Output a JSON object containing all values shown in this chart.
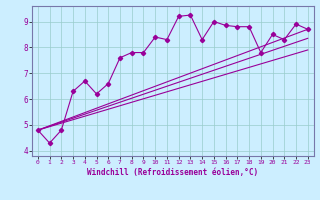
{
  "xlabel": "Windchill (Refroidissement éolien,°C)",
  "background_color": "#cceeff",
  "line_color": "#990099",
  "spine_color": "#7777aa",
  "xlim": [
    -0.5,
    23.5
  ],
  "ylim": [
    3.8,
    9.6
  ],
  "yticks": [
    4,
    5,
    6,
    7,
    8,
    9
  ],
  "xticks": [
    0,
    1,
    2,
    3,
    4,
    5,
    6,
    7,
    8,
    9,
    10,
    11,
    12,
    13,
    14,
    15,
    16,
    17,
    18,
    19,
    20,
    21,
    22,
    23
  ],
  "series1_x": [
    0,
    1,
    2,
    3,
    4,
    5,
    6,
    7,
    8,
    9,
    10,
    11,
    12,
    13,
    14,
    15,
    16,
    17,
    18,
    19,
    20,
    21,
    22,
    23
  ],
  "series1_y": [
    4.8,
    4.3,
    4.8,
    6.3,
    6.7,
    6.2,
    6.6,
    7.6,
    7.8,
    7.8,
    8.4,
    8.3,
    9.2,
    9.25,
    8.3,
    9.0,
    8.85,
    8.8,
    8.8,
    7.8,
    8.5,
    8.3,
    8.9,
    8.7
  ],
  "series2_x": [
    0,
    23
  ],
  "series2_y": [
    4.8,
    8.7
  ],
  "series3_x": [
    0,
    23
  ],
  "series3_y": [
    4.8,
    8.35
  ],
  "series4_x": [
    0,
    23
  ],
  "series4_y": [
    4.8,
    7.9
  ]
}
